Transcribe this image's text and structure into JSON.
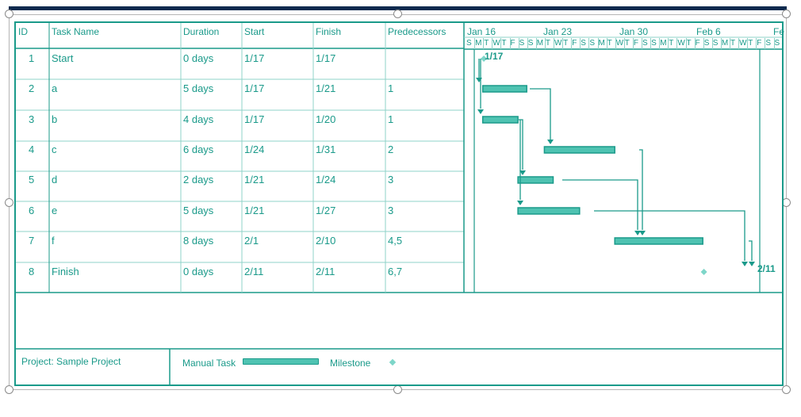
{
  "table": {
    "columns": [
      "ID",
      "Task Name",
      "Duration",
      "Start",
      "Finish",
      "Predecessors"
    ],
    "rows": [
      {
        "id": "1",
        "name": "Start",
        "duration": "0 days",
        "start": "1/17",
        "finish": "1/17",
        "pred": ""
      },
      {
        "id": "2",
        "name": "a",
        "duration": "5 days",
        "start": "1/17",
        "finish": "1/21",
        "pred": "1"
      },
      {
        "id": "3",
        "name": "b",
        "duration": "4 days",
        "start": "1/17",
        "finish": "1/20",
        "pred": "1"
      },
      {
        "id": "4",
        "name": "c",
        "duration": "6 days",
        "start": "1/24",
        "finish": "1/31",
        "pred": "2"
      },
      {
        "id": "5",
        "name": "d",
        "duration": "2 days",
        "start": "1/21",
        "finish": "1/24",
        "pred": "3"
      },
      {
        "id": "6",
        "name": "e",
        "duration": "5 days",
        "start": "1/21",
        "finish": "1/27",
        "pred": "3"
      },
      {
        "id": "7",
        "name": "f",
        "duration": "8 days",
        "start": "2/1",
        "finish": "2/10",
        "pred": "4,5"
      },
      {
        "id": "8",
        "name": "Finish",
        "duration": "0 days",
        "start": "2/11",
        "finish": "2/11",
        "pred": "6,7"
      }
    ]
  },
  "timescale": {
    "weeks": [
      "Jan 16",
      "Jan 23",
      "Jan 30",
      "Feb 6",
      "Fe"
    ],
    "days": [
      "S",
      "M",
      "T",
      "W",
      "T",
      "F",
      "S",
      "S",
      "M",
      "T",
      "W",
      "T",
      "F",
      "S",
      "S",
      "M",
      "T",
      "W",
      "T",
      "F",
      "S",
      "S",
      "M",
      "T",
      "W",
      "T",
      "F",
      "S",
      "S",
      "M",
      "T",
      "W",
      "T",
      "F",
      "S",
      "S"
    ],
    "milestone_labels": {
      "start": "1/17",
      "finish": "2/11"
    }
  },
  "gantt": {
    "start_date": "1/16",
    "bars": [
      {
        "task": "a",
        "start": "1/17",
        "finish": "1/21"
      },
      {
        "task": "b",
        "start": "1/17",
        "finish": "1/20"
      },
      {
        "task": "c",
        "start": "1/24",
        "finish": "1/31"
      },
      {
        "task": "d",
        "start": "1/21",
        "finish": "1/24"
      },
      {
        "task": "e",
        "start": "1/21",
        "finish": "1/27"
      },
      {
        "task": "f",
        "start": "2/1",
        "finish": "2/10"
      }
    ],
    "milestones": [
      {
        "task": "Start",
        "date": "1/17"
      },
      {
        "task": "Finish",
        "date": "2/11"
      }
    ]
  },
  "legend": {
    "project_label": "Project: Sample Project",
    "manual_task_label": "Manual Task",
    "milestone_label": "Milestone"
  },
  "colors": {
    "accent": "#1a9a8a",
    "bar_fill": "#4fc3b2",
    "top_bar": "#0e2a4e"
  }
}
